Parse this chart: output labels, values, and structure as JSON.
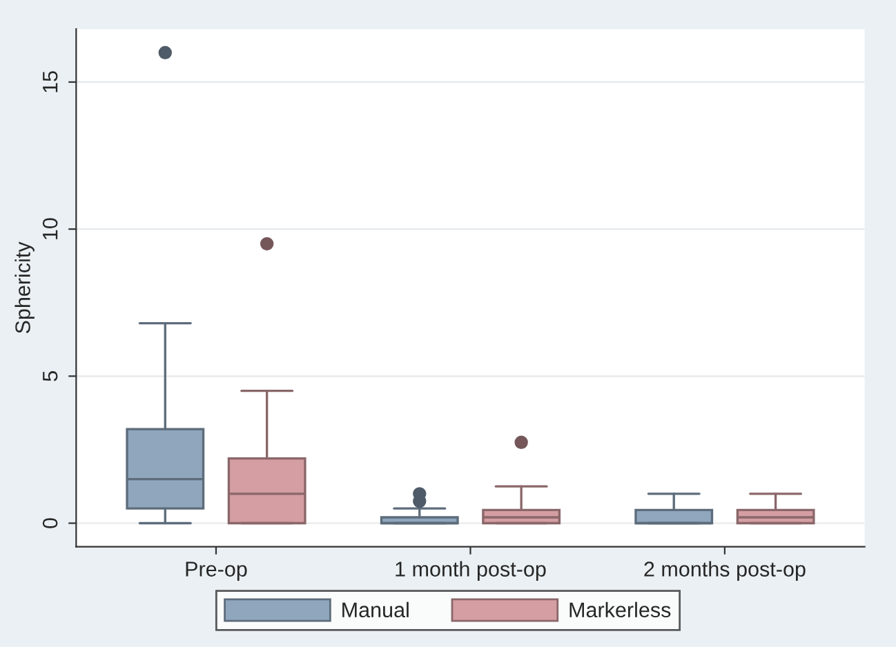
{
  "chart_data": {
    "type": "box",
    "ylabel": "Sphericity",
    "categories": [
      "Pre-op",
      "1 month post-op",
      "2 months post-op"
    ],
    "series": [
      {
        "name": "Manual",
        "color": "#8fa6bd",
        "boxes": [
          {
            "low": 0,
            "q1": 0.5,
            "median": 1.5,
            "q3": 3.2,
            "high": 6.8,
            "outliers": [
              16
            ]
          },
          {
            "low": 0,
            "q1": 0,
            "median": 0,
            "q3": 0.2,
            "high": 0.5,
            "outliers": [
              0.75,
              1.0
            ]
          },
          {
            "low": 0,
            "q1": 0,
            "median": 0,
            "q3": 0.45,
            "high": 1.0
          }
        ]
      },
      {
        "name": "Markerless",
        "color": "#d49ea3",
        "boxes": [
          {
            "low": 0,
            "q1": 0,
            "median": 1.0,
            "q3": 2.2,
            "high": 4.5,
            "outliers": [
              9.5
            ]
          },
          {
            "low": 0,
            "q1": 0,
            "median": 0.2,
            "q3": 0.45,
            "high": 1.25,
            "outliers": [
              2.75
            ]
          },
          {
            "low": 0,
            "q1": 0,
            "median": 0.2,
            "q3": 0.45,
            "high": 1.0
          }
        ]
      }
    ],
    "ylim": [
      -0.8,
      16.8
    ],
    "yticks": [
      0,
      5,
      10,
      15
    ],
    "grid": "y",
    "legend": "bottom"
  }
}
